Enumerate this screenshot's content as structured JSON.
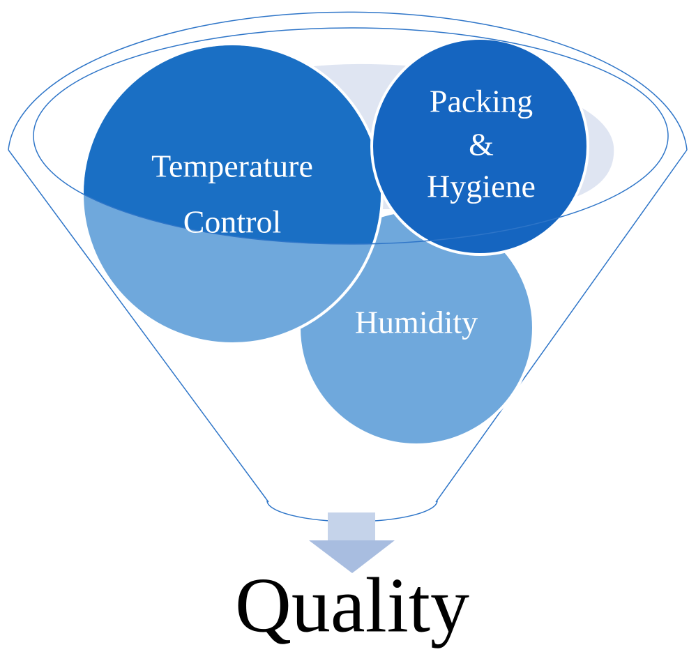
{
  "nodes": [
    {
      "label": [
        "Temperature",
        "Control"
      ]
    },
    {
      "label": [
        "Packing",
        "&",
        "Hygiene"
      ]
    },
    {
      "label": [
        "Humidity"
      ]
    }
  ],
  "result": "Quality"
}
